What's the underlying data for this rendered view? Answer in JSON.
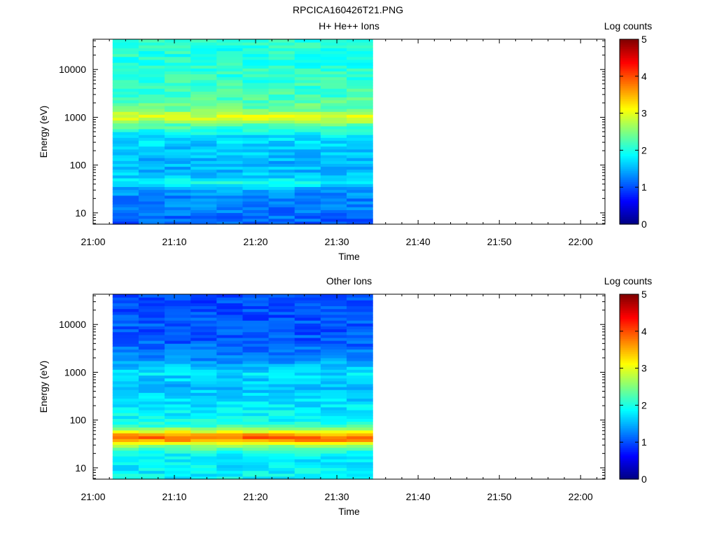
{
  "figure_title": "RPCICA160426T21.PNG",
  "chart_data": [
    {
      "type": "heatmap",
      "title": "H+ He++ Ions",
      "xlabel": "Time",
      "ylabel": "Energy (eV)",
      "y_scale": "log",
      "xlim": [
        "21:00",
        "22:03"
      ],
      "ylim": [
        5.8,
        43000
      ],
      "x_ticks": [
        "21:00",
        "21:10",
        "21:20",
        "21:30",
        "21:40",
        "21:50",
        "22:00"
      ],
      "y_ticks": [
        "10",
        "100",
        "1000",
        "10000"
      ],
      "data_time_range": [
        "21:02",
        "21:34"
      ],
      "time_bins": 10,
      "colorbar": {
        "label": "Log counts",
        "range": [
          0,
          5
        ],
        "ticks": [
          "0",
          "1",
          "2",
          "3",
          "4",
          "5"
        ],
        "colormap": "jet"
      },
      "energy_profile_log_counts": [
        {
          "energy_ev": 7,
          "value": 1.1
        },
        {
          "energy_ev": 10,
          "value": 1.2
        },
        {
          "energy_ev": 15,
          "value": 1.25
        },
        {
          "energy_ev": 22,
          "value": 1.3
        },
        {
          "energy_ev": 32,
          "value": 1.45
        },
        {
          "energy_ev": 45,
          "value": 1.95
        },
        {
          "energy_ev": 60,
          "value": 1.6
        },
        {
          "energy_ev": 100,
          "value": 1.5
        },
        {
          "energy_ev": 200,
          "value": 1.6
        },
        {
          "energy_ev": 400,
          "value": 1.75
        },
        {
          "energy_ev": 700,
          "value": 2.3
        },
        {
          "energy_ev": 1000,
          "value": 3.0
        },
        {
          "energy_ev": 1500,
          "value": 2.4
        },
        {
          "energy_ev": 3000,
          "value": 2.2
        },
        {
          "energy_ev": 10000,
          "value": 2.05
        },
        {
          "energy_ev": 40000,
          "value": 2.05
        }
      ]
    },
    {
      "type": "heatmap",
      "title": "Other Ions",
      "xlabel": "Time",
      "ylabel": "Energy (eV)",
      "y_scale": "log",
      "xlim": [
        "21:00",
        "22:03"
      ],
      "ylim": [
        5.8,
        43000
      ],
      "x_ticks": [
        "21:00",
        "21:10",
        "21:20",
        "21:30",
        "21:40",
        "21:50",
        "22:00"
      ],
      "y_ticks": [
        "10",
        "100",
        "1000",
        "10000"
      ],
      "data_time_range": [
        "21:02",
        "21:34"
      ],
      "time_bins": 10,
      "colorbar": {
        "label": "Log counts",
        "range": [
          0,
          5
        ],
        "ticks": [
          "0",
          "1",
          "2",
          "3",
          "4",
          "5"
        ],
        "colormap": "jet"
      },
      "energy_profile_log_counts": [
        {
          "energy_ev": 7,
          "value": 1.85
        },
        {
          "energy_ev": 12,
          "value": 1.8
        },
        {
          "energy_ev": 20,
          "value": 1.9
        },
        {
          "energy_ev": 30,
          "value": 2.6
        },
        {
          "energy_ev": 38,
          "value": 3.6
        },
        {
          "energy_ev": 45,
          "value": 3.95
        },
        {
          "energy_ev": 55,
          "value": 3.2
        },
        {
          "energy_ev": 80,
          "value": 2.0
        },
        {
          "energy_ev": 200,
          "value": 1.75
        },
        {
          "energy_ev": 500,
          "value": 1.55
        },
        {
          "energy_ev": 1000,
          "value": 1.75
        },
        {
          "energy_ev": 2000,
          "value": 1.3
        },
        {
          "energy_ev": 5000,
          "value": 1.05
        },
        {
          "energy_ev": 10000,
          "value": 1.05
        },
        {
          "energy_ev": 40000,
          "value": 0.95
        }
      ]
    }
  ]
}
